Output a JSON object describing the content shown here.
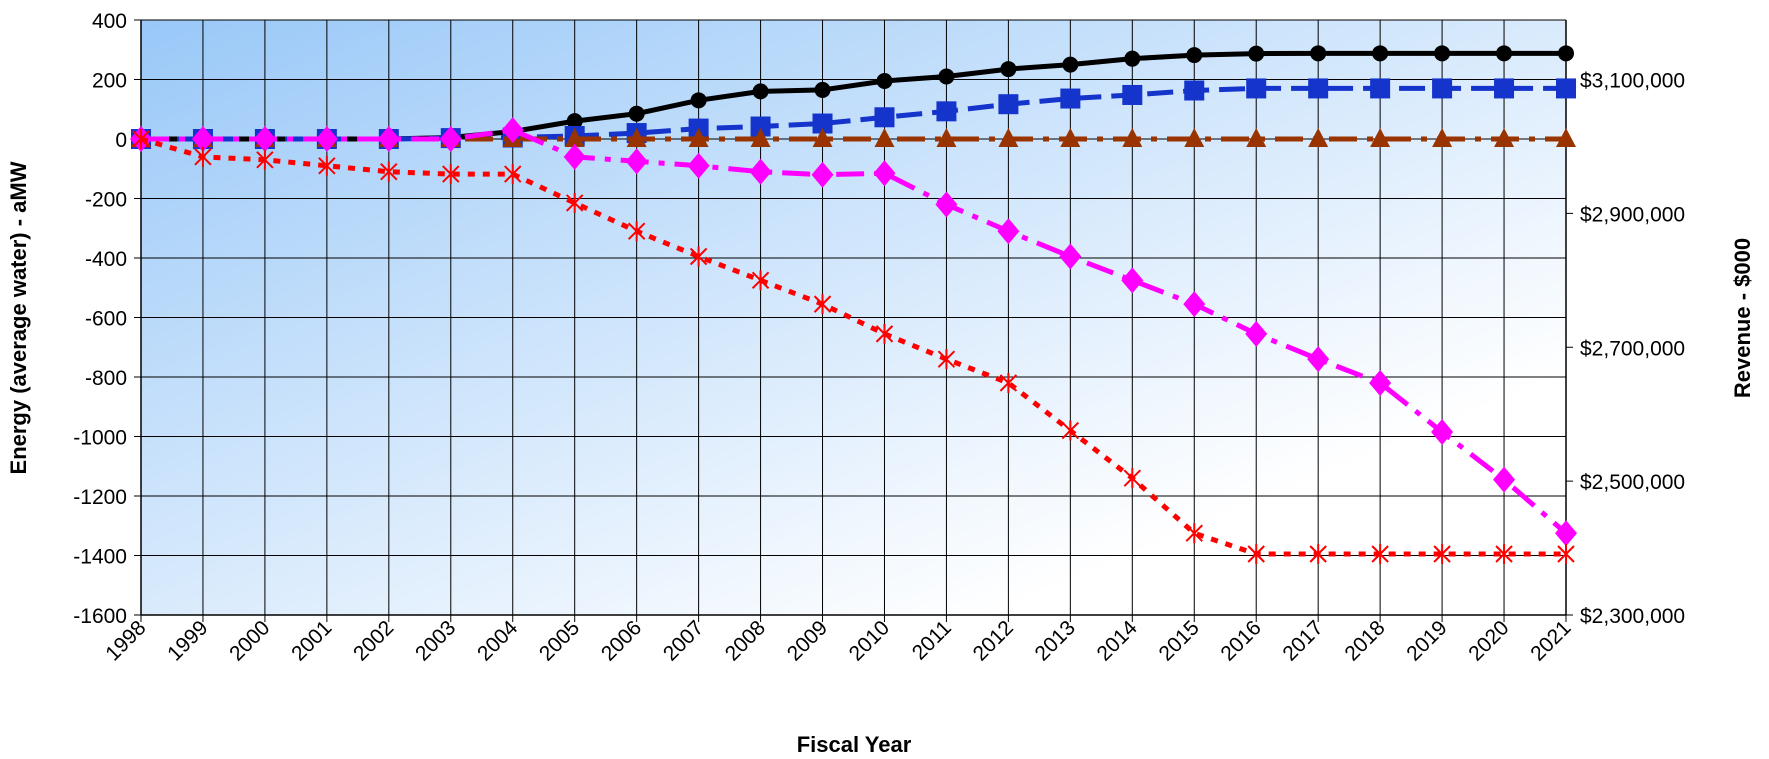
{
  "chart_data": {
    "type": "line",
    "title": "",
    "xlabel": "Fiscal Year",
    "ylabel": "Energy (average water) - aMW",
    "y2label": "Revenue - $000",
    "ylim": [
      -1600,
      400
    ],
    "y2lim": [
      2300000,
      3100000
    ],
    "yticks": [
      "400",
      "200",
      "0",
      "-200",
      "-400",
      "-600",
      "-800",
      "-1000",
      "-1200",
      "-1400",
      "-1600"
    ],
    "y2ticks": [
      "$3,100,000",
      "$2,900,000",
      "$2,700,000",
      "$2,500,000",
      "$2,300,000"
    ],
    "categories": [
      "1998",
      "1999",
      "2000",
      "2001",
      "2002",
      "2003",
      "2004",
      "2005",
      "2006",
      "2007",
      "2008",
      "2009",
      "2010",
      "2011",
      "2012",
      "2013",
      "2014",
      "2015",
      "2016",
      "2017",
      "2018",
      "2019",
      "2020",
      "2021"
    ],
    "grid": true,
    "background": {
      "top": "#99c8f8",
      "bottom": "#ffffff"
    },
    "series": [
      {
        "marker": "circle",
        "color": "#000000",
        "dash": "solid",
        "values": [
          0,
          0,
          0,
          0,
          0,
          5,
          25,
          60,
          85,
          130,
          160,
          165,
          195,
          210,
          235,
          250,
          270,
          282,
          287,
          288,
          288,
          288,
          288,
          288
        ]
      },
      {
        "marker": "square",
        "color": "#1434cc",
        "dash": "dash",
        "values": [
          0,
          0,
          0,
          0,
          0,
          3,
          5,
          10,
          20,
          35,
          42,
          52,
          73,
          93,
          117,
          136,
          148,
          163,
          170,
          170,
          170,
          170,
          170,
          170
        ]
      },
      {
        "marker": "triangle",
        "color": "#993300",
        "dash": "dashdot",
        "values": [
          0,
          0,
          0,
          0,
          0,
          0,
          0,
          0,
          0,
          0,
          0,
          0,
          0,
          0,
          0,
          0,
          0,
          0,
          0,
          0,
          0,
          0,
          0,
          0
        ]
      },
      {
        "marker": "diamond",
        "color": "#ff00ff",
        "dash": "dashdot",
        "values": [
          0,
          0,
          0,
          0,
          0,
          0,
          30,
          -60,
          -75,
          -90,
          -110,
          -120,
          -115,
          -220,
          -310,
          -395,
          -475,
          -555,
          -655,
          -740,
          -820,
          -985,
          -1145,
          -1325
        ]
      },
      {
        "marker": "star",
        "color": "#ff0000",
        "dash": "dot",
        "values": [
          0,
          -60,
          -70,
          -90,
          -110,
          -118,
          -118,
          -215,
          -310,
          -395,
          -475,
          -555,
          -655,
          -740,
          -820,
          -980,
          -1140,
          -1325,
          -1395,
          -1395,
          -1395,
          -1395,
          -1395,
          -1395
        ]
      }
    ]
  }
}
